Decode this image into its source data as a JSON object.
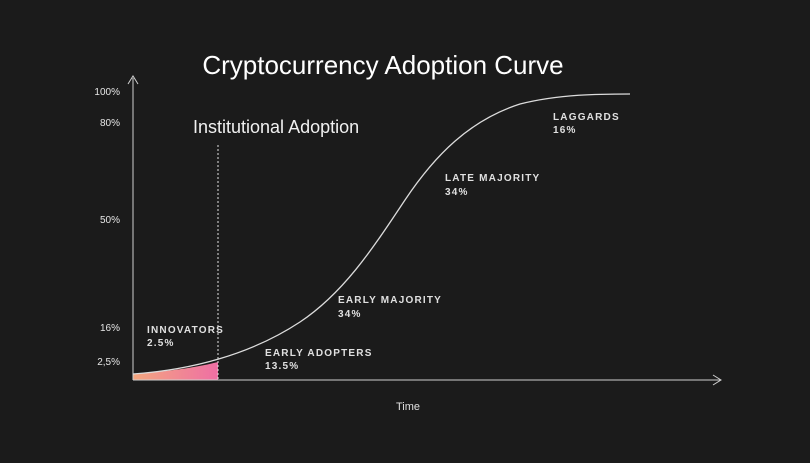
{
  "title": "Cryptocurrency Adoption Curve",
  "annotation": "Institutional Adoption",
  "y_axis_labels": [
    "100%",
    "80%",
    "50%",
    "16%",
    "2,5%"
  ],
  "x_axis_label": "Time",
  "segments": [
    {
      "name": "INNOVATORS",
      "share": "2.5%"
    },
    {
      "name": "EARLY ADOPTERS",
      "share": "13.5%"
    },
    {
      "name": "EARLY MAJORITY",
      "share": "34%"
    },
    {
      "name": "LATE MAJORITY",
      "share": "34%"
    },
    {
      "name": "LAGGARDS",
      "share": "16%"
    }
  ]
}
